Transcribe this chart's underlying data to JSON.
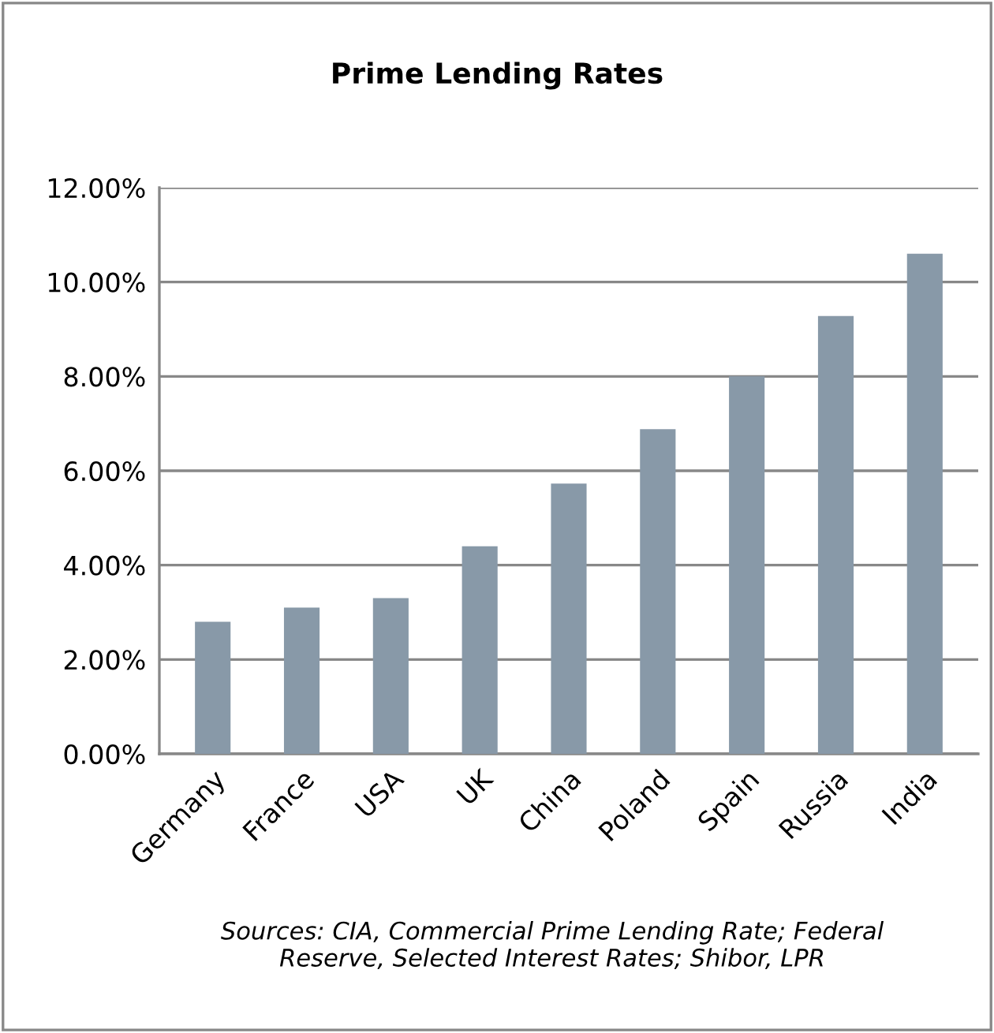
{
  "chart_data": {
    "type": "bar",
    "title": "Prime Lending Rates",
    "categories": [
      "Germany",
      "France",
      "USA",
      "UK",
      "China",
      "Poland",
      "Spain",
      "Russia",
      "India"
    ],
    "values": [
      2.8,
      3.1,
      3.3,
      4.4,
      5.73,
      6.88,
      8.0,
      9.28,
      10.6
    ],
    "color": "#8899a8",
    "ylim": [
      0,
      12
    ],
    "yticks": [
      {
        "value": 0,
        "label": "0.00%"
      },
      {
        "value": 2,
        "label": "2.00%"
      },
      {
        "value": 4,
        "label": "4.00%"
      },
      {
        "value": 6,
        "label": "6.00%"
      },
      {
        "value": 8,
        "label": "8.00%"
      },
      {
        "value": 10,
        "label": "10.00%"
      },
      {
        "value": 12,
        "label": "12.00%"
      }
    ],
    "grid": "y",
    "annotations": [
      "Sources: CIA, Commercial Prime Lending Rate; Federal\nReserve, Selected Interest Rates; Shibor, LPR"
    ]
  }
}
